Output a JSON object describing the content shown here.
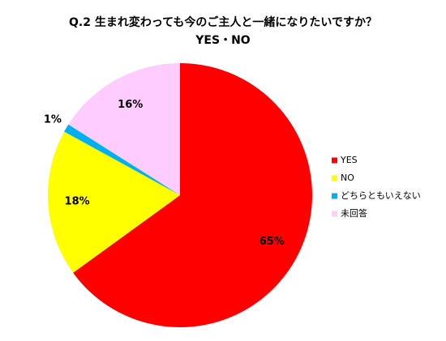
{
  "chart_data": {
    "type": "pie",
    "title": "Q.2 生まれ変わっても今のご主人と一緒になりたいですか？",
    "subtitle": "YES・NO",
    "categories": [
      "YES",
      "NO",
      "どちらともいえない",
      "未回答"
    ],
    "values": [
      65,
      18,
      1,
      16
    ],
    "value_labels": [
      "65%",
      "18%",
      "1%",
      "16%"
    ],
    "colors": [
      "#ff0000",
      "#ffff00",
      "#00b0f0",
      "#ffccff"
    ],
    "legend": "right"
  }
}
